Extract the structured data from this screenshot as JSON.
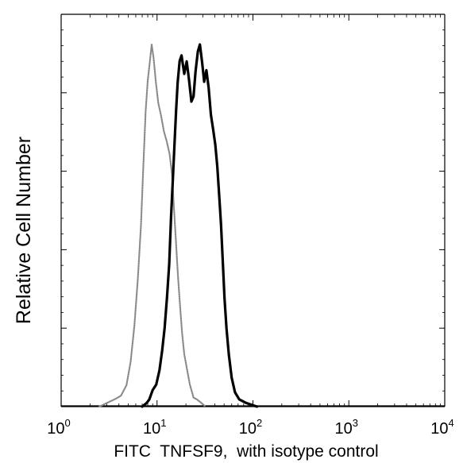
{
  "chart_data": {
    "type": "line",
    "title": "",
    "xlabel": "FITC  TNFSF9,  with isotype control",
    "ylabel": "Relative Cell Number",
    "x_scale": "log",
    "xlim": [
      1,
      10000
    ],
    "ylim": [
      0,
      100
    ],
    "x_ticks": [
      {
        "base": "10",
        "exp": "0",
        "value": 1
      },
      {
        "base": "10",
        "exp": "1",
        "value": 10
      },
      {
        "base": "10",
        "exp": "2",
        "value": 100
      },
      {
        "base": "10",
        "exp": "3",
        "value": 1000
      },
      {
        "base": "10",
        "exp": "4",
        "value": 10000
      }
    ],
    "y_ticks_labeled": false,
    "grid": false,
    "legend": "none",
    "series": [
      {
        "color": "#8a8a8a",
        "style": "dotted",
        "points": [
          [
            2.5,
            0
          ],
          [
            3.0,
            1
          ],
          [
            3.6,
            2
          ],
          [
            4.2,
            3
          ],
          [
            4.8,
            6
          ],
          [
            5.3,
            12
          ],
          [
            5.8,
            22
          ],
          [
            6.3,
            35
          ],
          [
            6.8,
            50
          ],
          [
            7.2,
            66
          ],
          [
            7.6,
            82
          ],
          [
            8.0,
            90
          ],
          [
            8.4,
            95
          ],
          [
            8.8,
            100
          ],
          [
            9.2,
            96
          ],
          [
            9.7,
            90
          ],
          [
            10.3,
            84
          ],
          [
            11.0,
            80
          ],
          [
            11.8,
            76
          ],
          [
            12.6,
            73
          ],
          [
            13.5,
            70
          ],
          [
            14.3,
            64
          ],
          [
            15.0,
            55
          ],
          [
            15.8,
            45
          ],
          [
            16.5,
            36
          ],
          [
            17.3,
            28
          ],
          [
            18.2,
            21
          ],
          [
            19.2,
            15
          ],
          [
            20.5,
            10
          ],
          [
            22.0,
            6
          ],
          [
            24.0,
            3
          ],
          [
            26.0,
            2
          ],
          [
            29.0,
            1
          ],
          [
            32.0,
            0
          ]
        ]
      },
      {
        "color": "#000000",
        "style": "solid",
        "points": [
          [
            7.0,
            0
          ],
          [
            7.8,
            1
          ],
          [
            8.3,
            2
          ],
          [
            9.0,
            4
          ],
          [
            9.8,
            6
          ],
          [
            10.6,
            10
          ],
          [
            11.3,
            15
          ],
          [
            12.0,
            22
          ],
          [
            12.7,
            30
          ],
          [
            13.4,
            40
          ],
          [
            14.0,
            52
          ],
          [
            14.6,
            62
          ],
          [
            15.2,
            72
          ],
          [
            15.8,
            82
          ],
          [
            16.4,
            90
          ],
          [
            17.2,
            95
          ],
          [
            18.0,
            97
          ],
          [
            19.2,
            92
          ],
          [
            20.4,
            95
          ],
          [
            21.6,
            90
          ],
          [
            22.8,
            84
          ],
          [
            24.0,
            86
          ],
          [
            25.2,
            92
          ],
          [
            26.6,
            98
          ],
          [
            28.0,
            100
          ],
          [
            29.5,
            95
          ],
          [
            31.0,
            90
          ],
          [
            32.7,
            93
          ],
          [
            34.5,
            88
          ],
          [
            36.5,
            80
          ],
          [
            38.5,
            76
          ],
          [
            40.5,
            72
          ],
          [
            42.5,
            66
          ],
          [
            44.5,
            58
          ],
          [
            46.5,
            50
          ],
          [
            48.5,
            40
          ],
          [
            50.5,
            30
          ],
          [
            53.0,
            22
          ],
          [
            56.0,
            14
          ],
          [
            60.0,
            8
          ],
          [
            65.0,
            4
          ],
          [
            72.0,
            2
          ],
          [
            85.0,
            1
          ],
          [
            110.0,
            0
          ]
        ]
      }
    ]
  }
}
